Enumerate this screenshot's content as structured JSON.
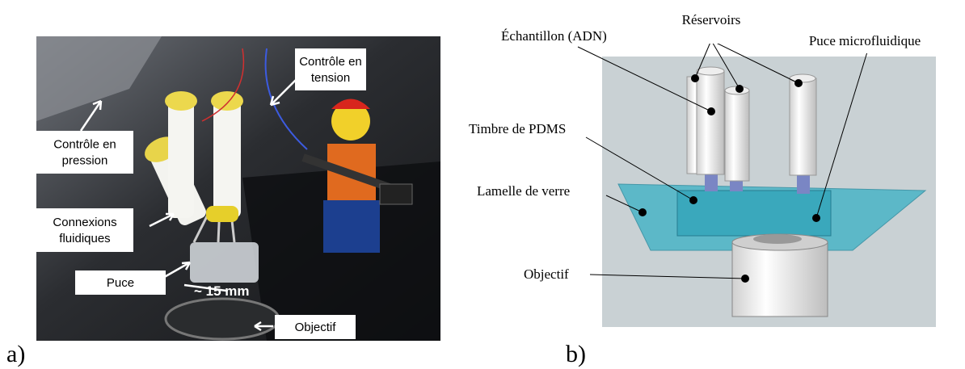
{
  "panel_a": {
    "label": "a)",
    "callouts": [
      {
        "lines": [
          "Contrôle en",
          "tension"
        ]
      },
      {
        "lines": [
          "Contrôle en",
          "pression"
        ]
      },
      {
        "lines": [
          "Connexions",
          "fluidiques"
        ]
      },
      {
        "lines": [
          "Puce"
        ]
      },
      {
        "lines": [
          "Objectif"
        ]
      }
    ],
    "scale_text": "~ 15 mm"
  },
  "panel_b": {
    "label": "b)",
    "callouts": [
      {
        "text": "Réservoirs"
      },
      {
        "text": "Échantillon (ADN)"
      },
      {
        "text": "Puce microfluidique"
      },
      {
        "text": "Timbre de PDMS"
      },
      {
        "text": "Lamelle de verre"
      },
      {
        "text": "Objectif"
      }
    ]
  }
}
